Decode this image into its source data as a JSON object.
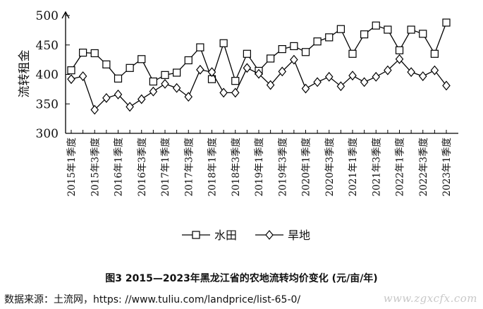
{
  "chart_data": {
    "type": "line",
    "ylabel": "流转租金",
    "ylim": [
      300,
      500
    ],
    "yticks": [
      300,
      350,
      400,
      450,
      500
    ],
    "categories": [
      "2015年1季度",
      "2015年2季度",
      "2015年3季度",
      "2015年4季度",
      "2016年1季度",
      "2016年2季度",
      "2016年3季度",
      "2016年4季度",
      "2017年1季度",
      "2017年2季度",
      "2017年3季度",
      "2017年4季度",
      "2018年1季度",
      "2018年2季度",
      "2018年3季度",
      "2018年4季度",
      "2019年1季度",
      "2019年2季度",
      "2019年3季度",
      "2019年4季度",
      "2020年1季度",
      "2020年2季度",
      "2020年3季度",
      "2020年4季度",
      "2021年1季度",
      "2021年2季度",
      "2021年3季度",
      "2021年4季度",
      "2022年1季度",
      "2022年2季度",
      "2022年3季度",
      "2022年4季度",
      "2023年1季度"
    ],
    "shown_tick_labels": [
      "2015年1季度",
      "2015年3季度",
      "2016年1季度",
      "2016年3季度",
      "2017年1季度",
      "2017年3季度",
      "2018年1季度",
      "2018年3季度",
      "2019年1季度",
      "2019年3季度",
      "2020年1季度",
      "2020年3季度",
      "2021年1季度",
      "2021年3季度",
      "2022年1季度",
      "2022年3季度",
      "2023年1季度"
    ],
    "series": [
      {
        "name": "水田",
        "marker": "square",
        "values": [
          407,
          437,
          436,
          417,
          393,
          411,
          426,
          388,
          399,
          403,
          424,
          446,
          392,
          453,
          389,
          435,
          406,
          427,
          443,
          448,
          438,
          456,
          463,
          477,
          435,
          468,
          483,
          476,
          441,
          476,
          469,
          435,
          488
        ]
      },
      {
        "name": "旱地",
        "marker": "diamond",
        "values": [
          392,
          397,
          340,
          360,
          366,
          345,
          358,
          371,
          384,
          377,
          362,
          408,
          404,
          369,
          369,
          411,
          401,
          382,
          405,
          425,
          376,
          387,
          396,
          380,
          398,
          387,
          396,
          407,
          426,
          404,
          397,
          407,
          381
        ]
      }
    ],
    "legend_position": "bottom",
    "grid": false
  },
  "caption": "图3 2015—2023年黑龙江省的农地流转均价变化 (元/亩/年)",
  "source_note": "数据来源：土流网，https: //www.tuliu.com/landprice/list-65-0/",
  "watermark": "www.zgxcfx.com"
}
